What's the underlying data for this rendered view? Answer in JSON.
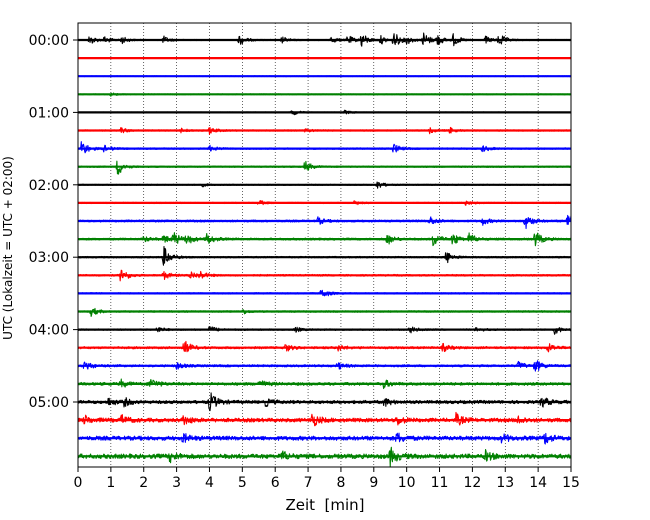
{
  "chart_data": {
    "type": "line",
    "title": "",
    "xlabel": "Zeit  [min]",
    "ylabel": "UTC (Lokalzeit = UTC + 02:00)",
    "xlim": [
      0,
      15
    ],
    "x_ticks": [
      "0",
      "1",
      "2",
      "3",
      "4",
      "5",
      "6",
      "7",
      "8",
      "9",
      "10",
      "11",
      "12",
      "13",
      "14",
      "15"
    ],
    "y_ticks": [
      "00:00",
      "01:00",
      "02:00",
      "03:00",
      "04:00",
      "05:00"
    ],
    "grid": "vertical dotted",
    "legend": "none",
    "row_colors": [
      "#000000",
      "#ff0000",
      "#0000ff",
      "#008000"
    ],
    "rows": [
      {
        "utc": "00:00",
        "color": "#000000",
        "noise": 0.35,
        "events": [
          [
            0.35,
            1.2
          ],
          [
            0.8,
            0.8
          ],
          [
            1.3,
            1.0
          ],
          [
            2.6,
            0.9
          ],
          [
            4.9,
            1.4
          ],
          [
            6.2,
            0.8
          ],
          [
            7.7,
            0.9
          ],
          [
            8.2,
            1.1
          ],
          [
            8.6,
            1.9
          ],
          [
            9.2,
            1.0
          ],
          [
            9.6,
            1.9
          ],
          [
            10.0,
            0.9
          ],
          [
            10.5,
            1.9
          ],
          [
            10.9,
            1.4
          ],
          [
            11.4,
            1.5
          ],
          [
            12.4,
            0.9
          ],
          [
            12.8,
            1.6
          ]
        ]
      },
      {
        "utc": "00:15",
        "color": "#ff0000",
        "noise": 0.25,
        "events": []
      },
      {
        "utc": "00:30",
        "color": "#0000ff",
        "noise": 0.25,
        "events": []
      },
      {
        "utc": "00:45",
        "color": "#008000",
        "noise": 0.3,
        "events": [
          [
            1.0,
            0.4
          ]
        ]
      },
      {
        "utc": "01:00",
        "color": "#000000",
        "noise": 0.3,
        "events": [
          [
            6.5,
            0.8
          ],
          [
            8.1,
            0.5
          ]
        ]
      },
      {
        "utc": "01:15",
        "color": "#ff0000",
        "noise": 0.45,
        "events": [
          [
            1.3,
            0.7
          ],
          [
            3.1,
            0.6
          ],
          [
            4.0,
            0.9
          ],
          [
            6.9,
            0.5
          ],
          [
            10.7,
            0.6
          ],
          [
            11.3,
            0.7
          ]
        ]
      },
      {
        "utc": "01:30",
        "color": "#0000ff",
        "noise": 0.5,
        "events": [
          [
            0.1,
            2.0
          ],
          [
            0.8,
            0.9
          ],
          [
            4.0,
            0.7
          ],
          [
            9.6,
            1.1
          ],
          [
            12.3,
            0.8
          ]
        ]
      },
      {
        "utc": "01:45",
        "color": "#008000",
        "noise": 0.45,
        "events": [
          [
            1.2,
            2.2
          ],
          [
            6.9,
            1.4
          ]
        ]
      },
      {
        "utc": "02:00",
        "color": "#000000",
        "noise": 0.35,
        "events": [
          [
            3.7,
            0.6
          ],
          [
            9.1,
            1.0
          ]
        ]
      },
      {
        "utc": "02:15",
        "color": "#ff0000",
        "noise": 0.4,
        "events": [
          [
            5.5,
            0.6
          ],
          [
            8.4,
            0.5
          ],
          [
            11.8,
            0.6
          ]
        ]
      },
      {
        "utc": "02:30",
        "color": "#0000ff",
        "noise": 0.65,
        "events": [
          [
            7.3,
            0.8
          ],
          [
            10.7,
            1.1
          ],
          [
            12.3,
            0.9
          ],
          [
            13.6,
            1.9
          ],
          [
            14.9,
            2.2
          ]
        ]
      },
      {
        "utc": "02:45",
        "color": "#008000",
        "noise": 0.65,
        "events": [
          [
            2.0,
            0.7
          ],
          [
            2.6,
            0.9
          ],
          [
            2.9,
            1.6
          ],
          [
            3.3,
            1.3
          ],
          [
            3.9,
            1.6
          ],
          [
            9.4,
            1.4
          ],
          [
            10.8,
            1.6
          ],
          [
            11.4,
            1.5
          ],
          [
            11.9,
            1.3
          ],
          [
            13.9,
            1.9
          ]
        ]
      },
      {
        "utc": "03:00",
        "color": "#000000",
        "noise": 0.5,
        "events": [
          [
            2.6,
            2.6
          ],
          [
            11.2,
            1.6
          ]
        ]
      },
      {
        "utc": "03:15",
        "color": "#ff0000",
        "noise": 0.55,
        "events": [
          [
            1.3,
            1.9
          ],
          [
            2.6,
            1.0
          ],
          [
            3.4,
            1.1
          ],
          [
            3.7,
            0.9
          ]
        ]
      },
      {
        "utc": "03:30",
        "color": "#0000ff",
        "noise": 0.45,
        "events": [
          [
            7.4,
            1.3
          ]
        ]
      },
      {
        "utc": "03:45",
        "color": "#008000",
        "noise": 0.5,
        "events": [
          [
            0.4,
            1.1
          ],
          [
            5.0,
            0.6
          ]
        ]
      },
      {
        "utc": "04:00",
        "color": "#000000",
        "noise": 0.5,
        "events": [
          [
            2.4,
            0.7
          ],
          [
            4.0,
            0.8
          ],
          [
            6.6,
            0.6
          ],
          [
            10.1,
            0.8
          ],
          [
            12.1,
            0.6
          ],
          [
            14.5,
            1.0
          ]
        ]
      },
      {
        "utc": "04:15",
        "color": "#ff0000",
        "noise": 0.7,
        "events": [
          [
            3.2,
            2.0
          ],
          [
            6.3,
            0.9
          ],
          [
            7.9,
            0.8
          ],
          [
            11.1,
            0.9
          ],
          [
            14.3,
            1.1
          ]
        ]
      },
      {
        "utc": "04:30",
        "color": "#0000ff",
        "noise": 0.7,
        "events": [
          [
            0.2,
            1.2
          ],
          [
            3.0,
            0.8
          ],
          [
            7.9,
            0.8
          ],
          [
            13.4,
            0.9
          ],
          [
            13.9,
            1.6
          ]
        ]
      },
      {
        "utc": "04:45",
        "color": "#008000",
        "noise": 0.9,
        "events": [
          [
            1.3,
            0.9
          ],
          [
            2.2,
            1.4
          ],
          [
            5.5,
            0.9
          ],
          [
            9.3,
            0.9
          ]
        ]
      },
      {
        "utc": "05:00",
        "color": "#000000",
        "noise": 1.0,
        "events": [
          [
            0.9,
            1.0
          ],
          [
            1.4,
            0.9
          ],
          [
            4.0,
            2.4
          ],
          [
            5.7,
            0.9
          ],
          [
            9.3,
            1.0
          ],
          [
            14.1,
            1.3
          ]
        ]
      },
      {
        "utc": "05:15",
        "color": "#ff0000",
        "noise": 1.2,
        "events": [
          [
            0.2,
            1.0
          ],
          [
            1.3,
            1.2
          ],
          [
            3.2,
            1.2
          ],
          [
            7.1,
            1.8
          ],
          [
            9.7,
            1.1
          ],
          [
            11.5,
            1.4
          ],
          [
            13.4,
            0.9
          ]
        ]
      },
      {
        "utc": "05:30",
        "color": "#0000ff",
        "noise": 1.3,
        "events": [
          [
            3.2,
            1.0
          ],
          [
            9.7,
            1.2
          ],
          [
            12.9,
            1.0
          ],
          [
            14.2,
            1.3
          ]
        ]
      },
      {
        "utc": "05:45",
        "color": "#008000",
        "noise": 1.4,
        "events": [
          [
            2.8,
            1.1
          ],
          [
            6.2,
            1.1
          ],
          [
            9.5,
            2.0
          ],
          [
            12.4,
            1.1
          ]
        ]
      }
    ]
  }
}
